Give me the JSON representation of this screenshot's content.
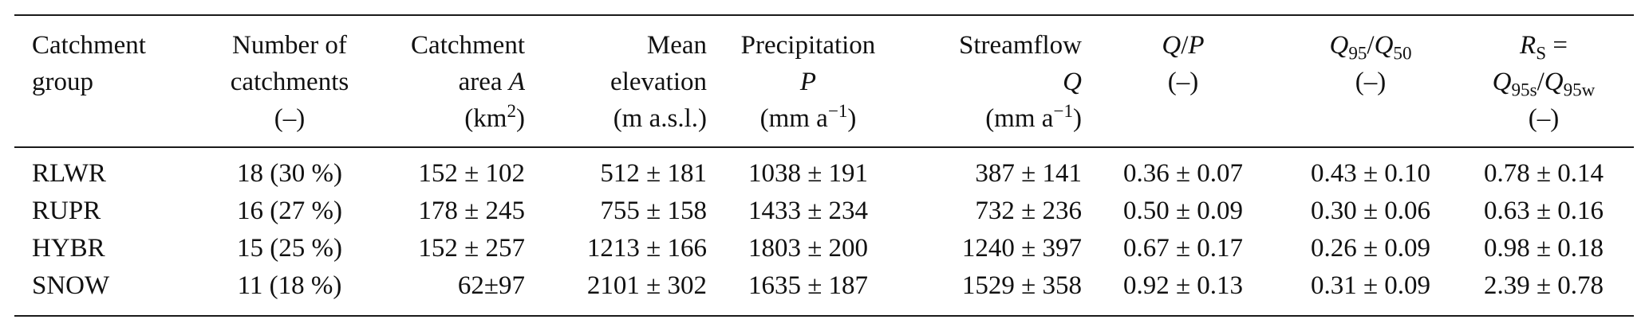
{
  "table": {
    "headers": [
      {
        "lines": [
          "Catchment",
          "group"
        ]
      },
      {
        "lines": [
          "Number of",
          "catchments",
          "(–)"
        ]
      },
      {
        "lines": [
          "Catchment",
          "area A",
          "(km2)"
        ]
      },
      {
        "lines": [
          "Mean",
          "elevation",
          "(m a.s.l.)"
        ]
      },
      {
        "lines": [
          "Precipitation",
          "P",
          "(mm a−1)"
        ]
      },
      {
        "lines": [
          "Streamflow",
          "Q",
          "(mm a−1)"
        ]
      },
      {
        "lines": [
          "Q/P",
          "(–)"
        ]
      },
      {
        "lines": [
          "Q95/Q50",
          "(–)"
        ]
      },
      {
        "lines": [
          "RS =",
          "Q95s/Q95w",
          "(–)"
        ]
      }
    ],
    "rows": [
      {
        "group": "RLWR",
        "n": "18 (30 %)",
        "area": "152 ± 102",
        "elev": "512 ± 181",
        "precip": "1038 ± 191",
        "flow": "387 ± 141",
        "qp": "0.36 ± 0.07",
        "q95q50": "0.43 ± 0.10",
        "rs": "0.78 ± 0.14"
      },
      {
        "group": "RUPR",
        "n": "16 (27 %)",
        "area": "178 ± 245",
        "elev": "755 ± 158",
        "precip": "1433 ± 234",
        "flow": "732 ± 236",
        "qp": "0.50 ± 0.09",
        "q95q50": "0.30 ± 0.06",
        "rs": "0.63 ± 0.16"
      },
      {
        "group": "HYBR",
        "n": "15 (25 %)",
        "area": "152 ± 257",
        "elev": "1213 ± 166",
        "precip": "1803 ± 200",
        "flow": "1240 ± 397",
        "qp": "0.67 ± 0.17",
        "q95q50": "0.26 ± 0.09",
        "rs": "0.98 ± 0.18"
      },
      {
        "group": "SNOW",
        "n": "11 (18 %)",
        "area": "62±97",
        "elev": "2101 ± 302",
        "precip": "1635 ± 187",
        "flow": "1529 ± 358",
        "qp": "0.92 ± 0.13",
        "q95q50": "0.31 ± 0.09",
        "rs": "2.39 ± 0.78"
      }
    ]
  }
}
